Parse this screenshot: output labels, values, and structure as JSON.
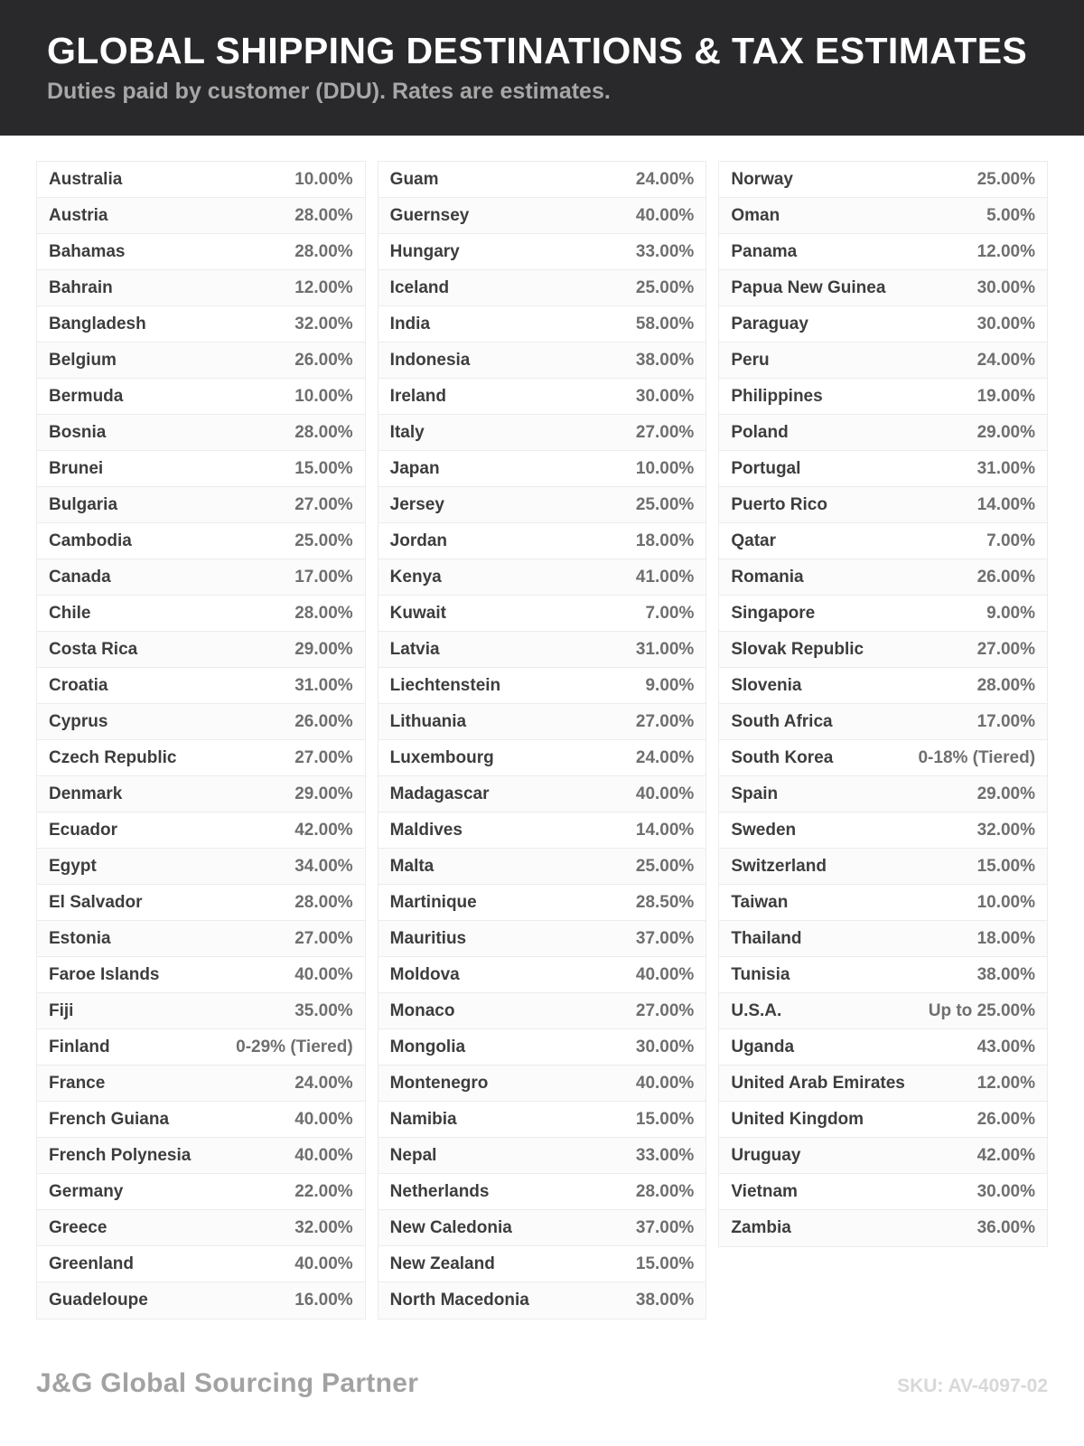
{
  "header": {
    "title": "GLOBAL SHIPPING DESTINATIONS & TAX ESTIMATES",
    "subtitle": "Duties paid by customer (DDU). Rates are estimates."
  },
  "columns": [
    [
      {
        "country": "Australia",
        "rate": "10.00%"
      },
      {
        "country": "Austria",
        "rate": "28.00%"
      },
      {
        "country": "Bahamas",
        "rate": "28.00%"
      },
      {
        "country": "Bahrain",
        "rate": "12.00%"
      },
      {
        "country": "Bangladesh",
        "rate": "32.00%"
      },
      {
        "country": "Belgium",
        "rate": "26.00%"
      },
      {
        "country": "Bermuda",
        "rate": "10.00%"
      },
      {
        "country": "Bosnia",
        "rate": "28.00%"
      },
      {
        "country": "Brunei",
        "rate": "15.00%"
      },
      {
        "country": "Bulgaria",
        "rate": "27.00%"
      },
      {
        "country": "Cambodia",
        "rate": "25.00%"
      },
      {
        "country": "Canada",
        "rate": "17.00%"
      },
      {
        "country": "Chile",
        "rate": "28.00%"
      },
      {
        "country": "Costa Rica",
        "rate": "29.00%"
      },
      {
        "country": "Croatia",
        "rate": "31.00%"
      },
      {
        "country": "Cyprus",
        "rate": "26.00%"
      },
      {
        "country": "Czech Republic",
        "rate": "27.00%"
      },
      {
        "country": "Denmark",
        "rate": "29.00%"
      },
      {
        "country": "Ecuador",
        "rate": "42.00%"
      },
      {
        "country": "Egypt",
        "rate": "34.00%"
      },
      {
        "country": "El Salvador",
        "rate": "28.00%"
      },
      {
        "country": "Estonia",
        "rate": "27.00%"
      },
      {
        "country": "Faroe Islands",
        "rate": "40.00%"
      },
      {
        "country": "Fiji",
        "rate": "35.00%"
      },
      {
        "country": "Finland",
        "rate": "0-29% (Tiered)"
      },
      {
        "country": "France",
        "rate": "24.00%"
      },
      {
        "country": "French Guiana",
        "rate": "40.00%"
      },
      {
        "country": "French Polynesia",
        "rate": "40.00%"
      },
      {
        "country": "Germany",
        "rate": "22.00%"
      },
      {
        "country": "Greece",
        "rate": "32.00%"
      },
      {
        "country": "Greenland",
        "rate": "40.00%"
      },
      {
        "country": "Guadeloupe",
        "rate": "16.00%"
      }
    ],
    [
      {
        "country": "Guam",
        "rate": "24.00%"
      },
      {
        "country": "Guernsey",
        "rate": "40.00%"
      },
      {
        "country": "Hungary",
        "rate": "33.00%"
      },
      {
        "country": "Iceland",
        "rate": "25.00%"
      },
      {
        "country": "India",
        "rate": "58.00%"
      },
      {
        "country": "Indonesia",
        "rate": "38.00%"
      },
      {
        "country": "Ireland",
        "rate": "30.00%"
      },
      {
        "country": "Italy",
        "rate": "27.00%"
      },
      {
        "country": "Japan",
        "rate": "10.00%"
      },
      {
        "country": "Jersey",
        "rate": "25.00%"
      },
      {
        "country": "Jordan",
        "rate": "18.00%"
      },
      {
        "country": "Kenya",
        "rate": "41.00%"
      },
      {
        "country": "Kuwait",
        "rate": "7.00%"
      },
      {
        "country": "Latvia",
        "rate": "31.00%"
      },
      {
        "country": "Liechtenstein",
        "rate": "9.00%"
      },
      {
        "country": "Lithuania",
        "rate": "27.00%"
      },
      {
        "country": "Luxembourg",
        "rate": "24.00%"
      },
      {
        "country": "Madagascar",
        "rate": "40.00%"
      },
      {
        "country": "Maldives",
        "rate": "14.00%"
      },
      {
        "country": "Malta",
        "rate": "25.00%"
      },
      {
        "country": "Martinique",
        "rate": "28.50%"
      },
      {
        "country": "Mauritius",
        "rate": "37.00%"
      },
      {
        "country": "Moldova",
        "rate": "40.00%"
      },
      {
        "country": "Monaco",
        "rate": "27.00%"
      },
      {
        "country": "Mongolia",
        "rate": "30.00%"
      },
      {
        "country": "Montenegro",
        "rate": "40.00%"
      },
      {
        "country": "Namibia",
        "rate": "15.00%"
      },
      {
        "country": "Nepal",
        "rate": "33.00%"
      },
      {
        "country": "Netherlands",
        "rate": "28.00%"
      },
      {
        "country": "New Caledonia",
        "rate": "37.00%"
      },
      {
        "country": "New Zealand",
        "rate": "15.00%"
      },
      {
        "country": "North Macedonia",
        "rate": "38.00%"
      }
    ],
    [
      {
        "country": "Norway",
        "rate": "25.00%"
      },
      {
        "country": "Oman",
        "rate": "5.00%"
      },
      {
        "country": "Panama",
        "rate": "12.00%"
      },
      {
        "country": "Papua New Guinea",
        "rate": "30.00%"
      },
      {
        "country": "Paraguay",
        "rate": "30.00%"
      },
      {
        "country": "Peru",
        "rate": "24.00%"
      },
      {
        "country": "Philippines",
        "rate": "19.00%"
      },
      {
        "country": "Poland",
        "rate": "29.00%"
      },
      {
        "country": "Portugal",
        "rate": "31.00%"
      },
      {
        "country": "Puerto Rico",
        "rate": "14.00%"
      },
      {
        "country": "Qatar",
        "rate": "7.00%"
      },
      {
        "country": "Romania",
        "rate": "26.00%"
      },
      {
        "country": "Singapore",
        "rate": "9.00%"
      },
      {
        "country": "Slovak Republic",
        "rate": "27.00%"
      },
      {
        "country": "Slovenia",
        "rate": "28.00%"
      },
      {
        "country": "South Africa",
        "rate": "17.00%"
      },
      {
        "country": "South Korea",
        "rate": "0-18% (Tiered)"
      },
      {
        "country": "Spain",
        "rate": "29.00%"
      },
      {
        "country": "Sweden",
        "rate": "32.00%"
      },
      {
        "country": "Switzerland",
        "rate": "15.00%"
      },
      {
        "country": "Taiwan",
        "rate": "10.00%"
      },
      {
        "country": "Thailand",
        "rate": "18.00%"
      },
      {
        "country": "Tunisia",
        "rate": "38.00%"
      },
      {
        "country": "U.S.A.",
        "rate": "Up to 25.00%"
      },
      {
        "country": "Uganda",
        "rate": "43.00%"
      },
      {
        "country": "United Arab Emirates",
        "rate": "12.00%"
      },
      {
        "country": "United Kingdom",
        "rate": "26.00%"
      },
      {
        "country": "Uruguay",
        "rate": "42.00%"
      },
      {
        "country": "Vietnam",
        "rate": "30.00%"
      },
      {
        "country": "Zambia",
        "rate": "36.00%"
      }
    ]
  ],
  "footer": {
    "brand": "J&G Global Sourcing Partner",
    "sku": "SKU: AV-4097-02"
  },
  "colors": {
    "header_bg": "#29292c",
    "title_text": "#ffffff",
    "subtitle_text": "#a7a7a7",
    "country_text": "#3d3d3d",
    "rate_text": "#6f6f6f",
    "row_border": "#ececec",
    "footer_brand_text": "#a2a2a2",
    "footer_sku_text": "#d8d8d8"
  }
}
